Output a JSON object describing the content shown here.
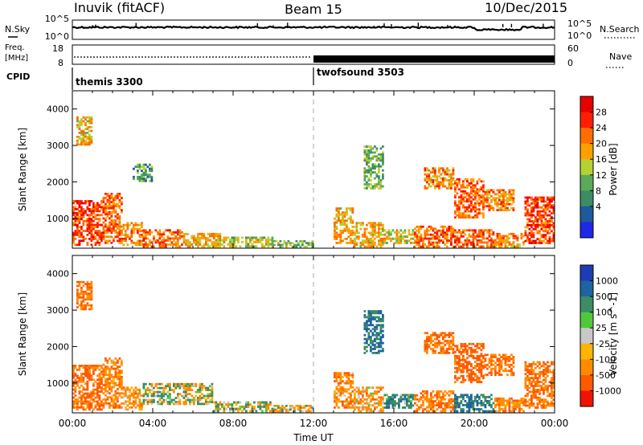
{
  "header": {
    "station": "Inuvik (fitACF)",
    "beam": "Beam 15",
    "date": "10/Dec/2015"
  },
  "summary": {
    "nsky_label": "N.Sky",
    "nsearch_label": "N.Search",
    "freq_label_1": "Freq.",
    "freq_label_2": "[MHz]",
    "nave_label": "Nave",
    "cpid_label": "CPID",
    "noise_ticks": [
      "10^5",
      "10^0"
    ],
    "freq_ticks": [
      "18",
      "8"
    ],
    "nave_ticks": [
      "60",
      "0"
    ],
    "cpid_segments": [
      {
        "name": "themis 3300",
        "start_hour": 0,
        "end_hour": 12
      },
      {
        "name": "twofsound 3503",
        "start_hour": 12,
        "end_hour": 24
      }
    ]
  },
  "colors": {
    "power": [
      "#1e28e6",
      "#1e5a9c",
      "#3c8c64",
      "#5aaa5a",
      "#b4d232",
      "#ffa000",
      "#ff6e00",
      "#ff1e00",
      "#e60000"
    ],
    "velocity": [
      "#1e3cb4",
      "#1e64a0",
      "#3c8c64",
      "#50c83c",
      "#c8c8c8",
      "#ffb400",
      "#ff8c00",
      "#ff5a00",
      "#f01400"
    ],
    "ground_scatter": "#c0c0b8"
  },
  "chart_data": [
    {
      "type": "heatmap",
      "name": "power",
      "xlabel": "",
      "ylabel": "Slant Range [km]",
      "xlim": [
        0,
        24
      ],
      "ylim": [
        180,
        4500
      ],
      "yticks": [
        1000,
        2000,
        3000,
        4000
      ],
      "colorbar": {
        "label": "Power [dB]",
        "range": [
          0,
          30
        ],
        "ticks": [
          "4",
          "8",
          "12",
          "16",
          "20",
          "24",
          "28"
        ]
      },
      "cells": [
        [
          0.0,
          1.5,
          250,
          1500,
          24
        ],
        [
          1.5,
          2.5,
          300,
          1700,
          22
        ],
        [
          2.5,
          3.5,
          250,
          900,
          20
        ],
        [
          3.5,
          5.5,
          200,
          700,
          22
        ],
        [
          5.5,
          7.5,
          200,
          600,
          18
        ],
        [
          7.5,
          10.0,
          200,
          500,
          14
        ],
        [
          10.0,
          12.0,
          200,
          400,
          12
        ],
        [
          13.0,
          14.0,
          300,
          1300,
          18
        ],
        [
          14.0,
          15.5,
          200,
          900,
          18
        ],
        [
          15.5,
          17.0,
          300,
          700,
          16
        ],
        [
          17.0,
          19.0,
          200,
          800,
          22
        ],
        [
          19.0,
          21.0,
          200,
          700,
          22
        ],
        [
          21.0,
          22.5,
          200,
          600,
          20
        ],
        [
          22.5,
          24.0,
          300,
          1600,
          24
        ],
        [
          17.5,
          19.0,
          1800,
          2400,
          20
        ],
        [
          19.0,
          20.5,
          1000,
          2100,
          22
        ],
        [
          20.5,
          22.0,
          1200,
          1800,
          20
        ],
        [
          14.5,
          15.5,
          1800,
          3000,
          12
        ],
        [
          0.2,
          1.0,
          3000,
          3800,
          18
        ],
        [
          3.0,
          4.0,
          2000,
          2500,
          10
        ]
      ]
    },
    {
      "type": "heatmap",
      "name": "velocity",
      "xlabel": "Time UT",
      "ylabel": "Slant Range [km]",
      "xlim": [
        0,
        24
      ],
      "ylim": [
        180,
        4500
      ],
      "yticks": [
        1000,
        2000,
        3000,
        4000
      ],
      "xticks": [
        "00:00",
        "04:00",
        "08:00",
        "12:00",
        "16:00",
        "20:00",
        "00:00"
      ],
      "colorbar": {
        "label": "Velocity [m s^-1]",
        "ticks": [
          "1000",
          "500",
          "100",
          "25",
          "-25",
          "-100",
          "-500",
          "-1000"
        ]
      },
      "cells": [
        [
          0.0,
          1.5,
          250,
          1500,
          -300
        ],
        [
          1.5,
          2.5,
          300,
          1700,
          -200
        ],
        [
          2.5,
          3.5,
          250,
          900,
          -150
        ],
        [
          3.5,
          7.0,
          400,
          1000,
          0
        ],
        [
          7.0,
          10.0,
          200,
          500,
          0
        ],
        [
          10.0,
          12.0,
          200,
          400,
          -50
        ],
        [
          13.0,
          14.0,
          300,
          1300,
          -200
        ],
        [
          14.0,
          15.5,
          200,
          900,
          -150
        ],
        [
          15.5,
          17.0,
          300,
          700,
          200
        ],
        [
          17.0,
          19.0,
          200,
          800,
          -250
        ],
        [
          19.0,
          21.0,
          200,
          700,
          300
        ],
        [
          21.0,
          22.5,
          200,
          600,
          -200
        ],
        [
          22.5,
          24.0,
          300,
          1600,
          -300
        ],
        [
          17.5,
          19.0,
          1800,
          2400,
          -300
        ],
        [
          19.0,
          20.5,
          1000,
          2100,
          -400
        ],
        [
          20.5,
          22.0,
          1200,
          1800,
          -300
        ],
        [
          14.5,
          15.5,
          1800,
          3000,
          300
        ],
        [
          0.2,
          1.0,
          3000,
          3800,
          -300
        ]
      ]
    }
  ]
}
